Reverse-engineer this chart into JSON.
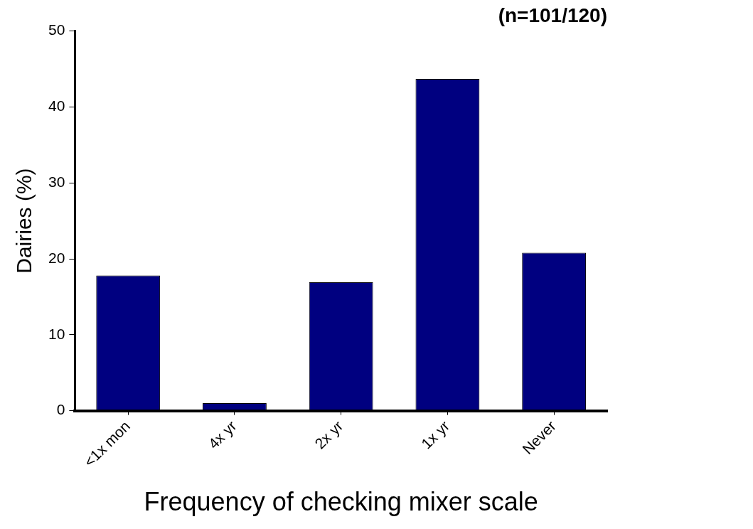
{
  "chart_data": {
    "type": "bar",
    "title": "(n=101/120)",
    "xlabel": "Frequency of checking mixer scale",
    "ylabel": "Dairies (%)",
    "categories": [
      "<1x mon",
      "4x yr",
      "2x yr",
      "1x yr",
      "Never"
    ],
    "values": [
      17.8,
      1.0,
      16.9,
      43.7,
      20.8
    ],
    "color": "#000080",
    "ylim": [
      0,
      50
    ],
    "yticks": [
      0,
      10,
      20,
      30,
      40,
      50
    ],
    "grid": false,
    "legend": false
  }
}
